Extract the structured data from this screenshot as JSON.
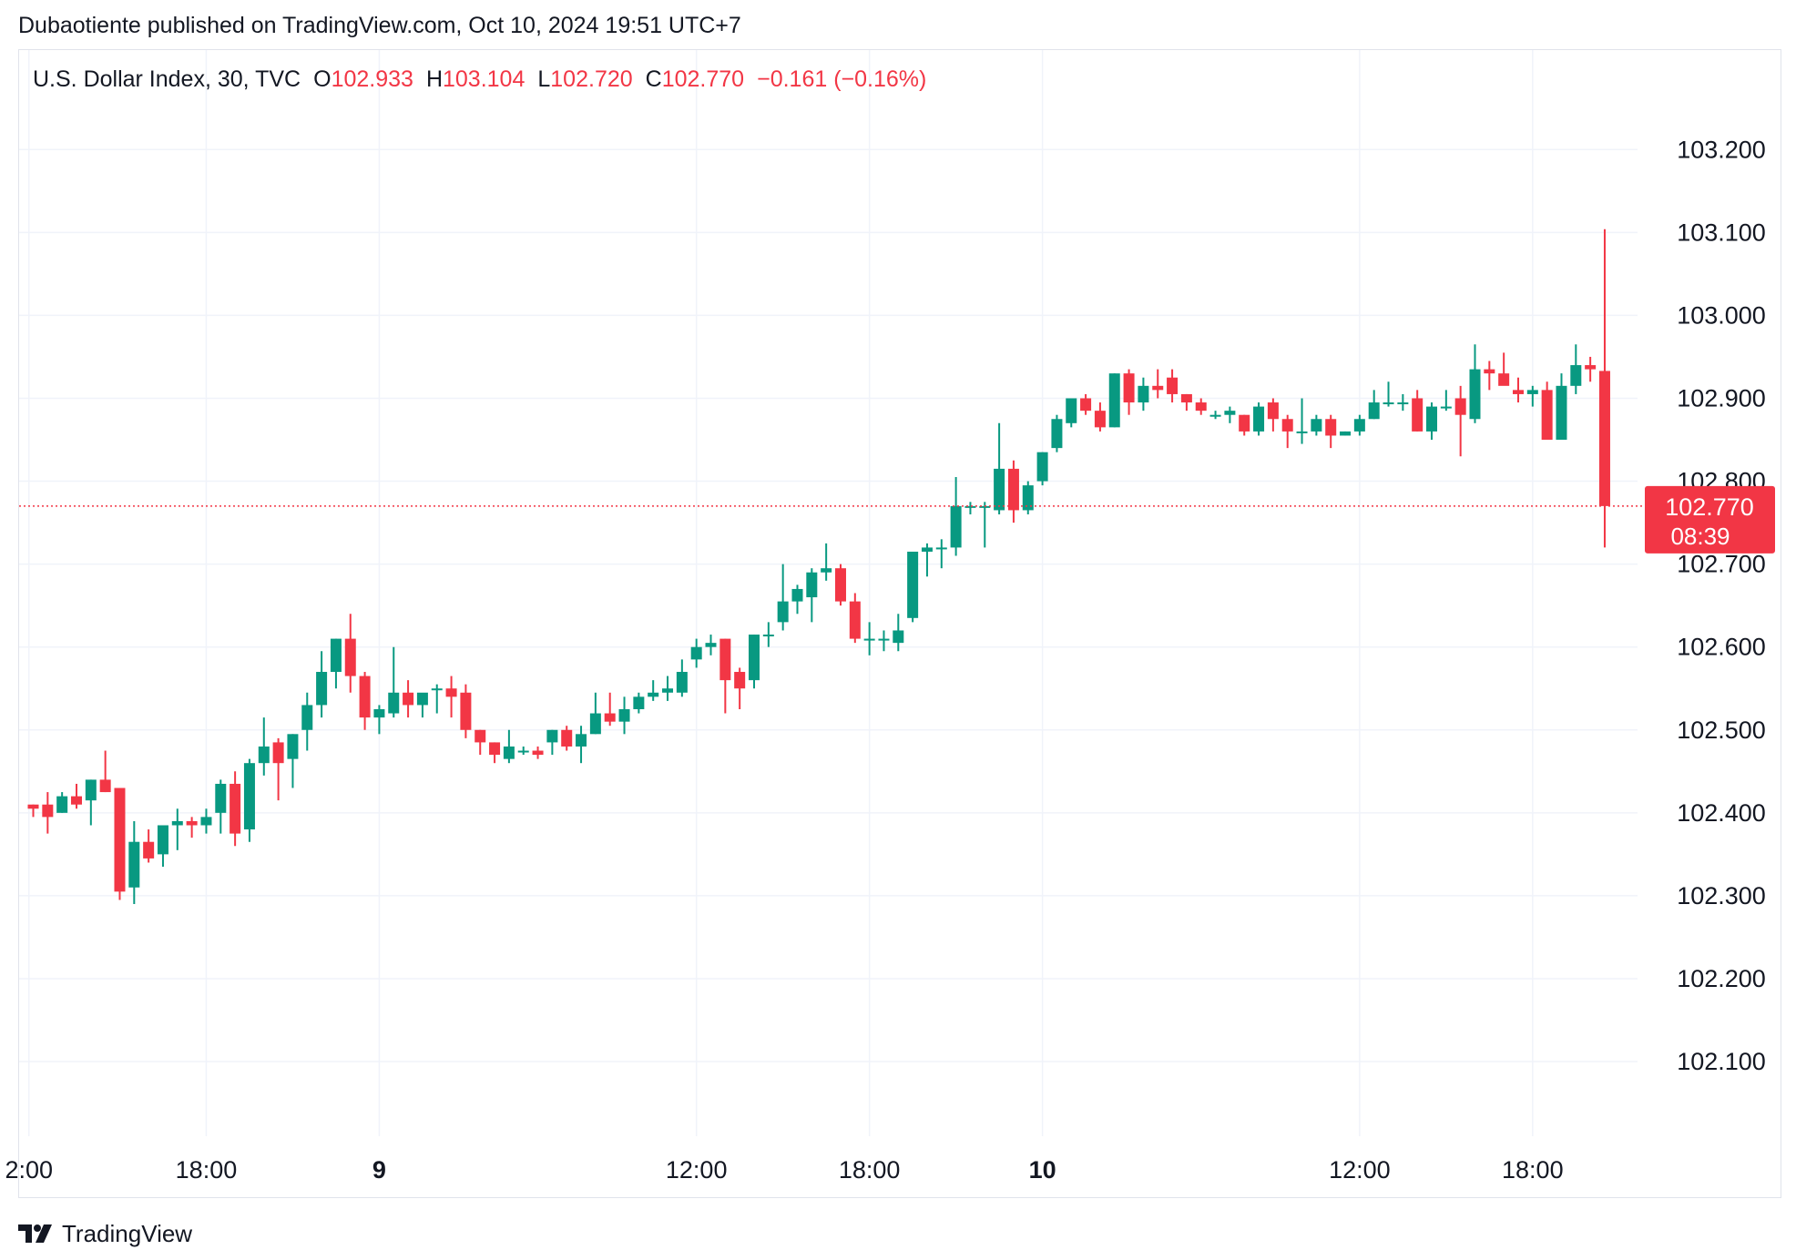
{
  "header": {
    "published": "Dubaotiente published on TradingView.com, Oct 10, 2024 19:51 UTC+7"
  },
  "legend": {
    "name": "U.S. Dollar Index, 30, TVC",
    "o_label": "O",
    "o_value": "102.933",
    "h_label": "H",
    "h_value": "103.104",
    "l_label": "L",
    "l_value": "102.720",
    "c_label": "C",
    "c_value": "102.770",
    "change": "−0.161 (−0.16%)"
  },
  "price_tag": {
    "price": "102.770",
    "countdown": "08:39"
  },
  "brand": {
    "name": "TradingView",
    "icon": "tradingview-logo-icon"
  },
  "colors": {
    "up": "#089981",
    "down": "#f23645",
    "grid": "#f0f3fa",
    "text": "#131722",
    "border": "#e0e3eb"
  },
  "chart_data": {
    "type": "candlestick",
    "interval": "30",
    "ylim": [
      102.01,
      103.32
    ],
    "ytick_labels": [
      "103.200",
      "103.100",
      "103.000",
      "102.900",
      "102.800",
      "102.700",
      "102.600",
      "102.500",
      "102.400",
      "102.300",
      "102.200",
      "102.100"
    ],
    "xtick_labels": [
      {
        "label": "2:00",
        "bar": -0.3,
        "bold": false
      },
      {
        "label": "18:00",
        "bar": 12,
        "bold": false
      },
      {
        "label": "9",
        "bar": 24,
        "bold": true
      },
      {
        "label": "12:00",
        "bar": 46,
        "bold": false
      },
      {
        "label": "18:00",
        "bar": 58,
        "bold": false
      },
      {
        "label": "10",
        "bar": 70,
        "bold": true
      },
      {
        "label": "12:00",
        "bar": 92,
        "bold": false
      },
      {
        "label": "18:00",
        "bar": 104,
        "bold": false
      }
    ],
    "grid": true,
    "last_price": 102.77,
    "ohlc": [
      [
        102.41,
        102.41,
        102.395,
        102.405
      ],
      [
        102.41,
        102.425,
        102.375,
        102.395
      ],
      [
        102.4,
        102.425,
        102.4,
        102.42
      ],
      [
        102.42,
        102.435,
        102.405,
        102.41
      ],
      [
        102.415,
        102.44,
        102.385,
        102.44
      ],
      [
        102.44,
        102.475,
        102.425,
        102.425
      ],
      [
        102.43,
        102.43,
        102.295,
        102.305
      ],
      [
        102.31,
        102.39,
        102.29,
        102.365
      ],
      [
        102.365,
        102.38,
        102.34,
        102.345
      ],
      [
        102.35,
        102.385,
        102.335,
        102.385
      ],
      [
        102.385,
        102.405,
        102.355,
        102.39
      ],
      [
        102.39,
        102.395,
        102.37,
        102.385
      ],
      [
        102.385,
        102.405,
        102.375,
        102.395
      ],
      [
        102.4,
        102.44,
        102.375,
        102.435
      ],
      [
        102.435,
        102.45,
        102.36,
        102.375
      ],
      [
        102.38,
        102.465,
        102.365,
        102.46
      ],
      [
        102.46,
        102.515,
        102.445,
        102.48
      ],
      [
        102.485,
        102.49,
        102.415,
        102.46
      ],
      [
        102.465,
        102.495,
        102.43,
        102.495
      ],
      [
        102.5,
        102.545,
        102.475,
        102.53
      ],
      [
        102.53,
        102.595,
        102.515,
        102.57
      ],
      [
        102.57,
        102.61,
        102.55,
        102.61
      ],
      [
        102.61,
        102.64,
        102.545,
        102.565
      ],
      [
        102.565,
        102.57,
        102.5,
        102.515
      ],
      [
        102.515,
        102.53,
        102.495,
        102.525
      ],
      [
        102.52,
        102.6,
        102.515,
        102.545
      ],
      [
        102.545,
        102.56,
        102.515,
        102.53
      ],
      [
        102.53,
        102.54,
        102.515,
        102.545
      ],
      [
        102.55,
        102.555,
        102.52,
        102.55
      ],
      [
        102.55,
        102.565,
        102.515,
        102.54
      ],
      [
        102.545,
        102.555,
        102.49,
        102.5
      ],
      [
        102.5,
        102.5,
        102.47,
        102.485
      ],
      [
        102.485,
        102.485,
        102.46,
        102.47
      ],
      [
        102.465,
        102.5,
        102.46,
        102.48
      ],
      [
        102.475,
        102.48,
        102.47,
        102.475
      ],
      [
        102.475,
        102.48,
        102.465,
        102.47
      ],
      [
        102.485,
        102.5,
        102.47,
        102.5
      ],
      [
        102.5,
        102.505,
        102.475,
        102.48
      ],
      [
        102.48,
        102.505,
        102.46,
        102.495
      ],
      [
        102.495,
        102.545,
        102.495,
        102.52
      ],
      [
        102.52,
        102.545,
        102.505,
        102.51
      ],
      [
        102.51,
        102.54,
        102.495,
        102.525
      ],
      [
        102.525,
        102.545,
        102.52,
        102.54
      ],
      [
        102.54,
        102.56,
        102.535,
        102.545
      ],
      [
        102.545,
        102.565,
        102.535,
        102.55
      ],
      [
        102.545,
        102.585,
        102.54,
        102.57
      ],
      [
        102.585,
        102.61,
        102.575,
        102.6
      ],
      [
        102.6,
        102.615,
        102.59,
        102.605
      ],
      [
        102.61,
        102.61,
        102.52,
        102.56
      ],
      [
        102.57,
        102.575,
        102.525,
        102.55
      ],
      [
        102.56,
        102.615,
        102.55,
        102.615
      ],
      [
        102.615,
        102.63,
        102.6,
        102.615
      ],
      [
        102.63,
        102.7,
        102.62,
        102.655
      ],
      [
        102.655,
        102.675,
        102.64,
        102.67
      ],
      [
        102.66,
        102.695,
        102.63,
        102.69
      ],
      [
        102.69,
        102.725,
        102.68,
        102.695
      ],
      [
        102.695,
        102.7,
        102.65,
        102.655
      ],
      [
        102.655,
        102.665,
        102.605,
        102.61
      ],
      [
        102.61,
        102.63,
        102.59,
        102.61
      ],
      [
        102.61,
        102.62,
        102.595,
        102.61
      ],
      [
        102.605,
        102.64,
        102.595,
        102.62
      ],
      [
        102.635,
        102.715,
        102.63,
        102.715
      ],
      [
        102.715,
        102.725,
        102.685,
        102.72
      ],
      [
        102.72,
        102.73,
        102.695,
        102.72
      ],
      [
        102.72,
        102.805,
        102.71,
        102.77
      ],
      [
        102.77,
        102.775,
        102.76,
        102.77
      ],
      [
        102.77,
        102.775,
        102.72,
        102.77
      ],
      [
        102.765,
        102.87,
        102.76,
        102.815
      ],
      [
        102.815,
        102.825,
        102.75,
        102.765
      ],
      [
        102.765,
        102.8,
        102.76,
        102.795
      ],
      [
        102.8,
        102.835,
        102.795,
        102.835
      ],
      [
        102.84,
        102.88,
        102.835,
        102.875
      ],
      [
        102.87,
        102.9,
        102.865,
        102.9
      ],
      [
        102.9,
        102.905,
        102.88,
        102.885
      ],
      [
        102.885,
        102.895,
        102.86,
        102.865
      ],
      [
        102.865,
        102.93,
        102.865,
        102.93
      ],
      [
        102.93,
        102.935,
        102.88,
        102.895
      ],
      [
        102.895,
        102.925,
        102.885,
        102.915
      ],
      [
        102.915,
        102.935,
        102.9,
        102.91
      ],
      [
        102.925,
        102.935,
        102.895,
        102.905
      ],
      [
        102.905,
        102.905,
        102.885,
        102.895
      ],
      [
        102.895,
        102.9,
        102.88,
        102.885
      ],
      [
        102.88,
        102.885,
        102.875,
        102.88
      ],
      [
        102.88,
        102.89,
        102.87,
        102.885
      ],
      [
        102.88,
        102.88,
        102.855,
        102.86
      ],
      [
        102.86,
        102.895,
        102.855,
        102.89
      ],
      [
        102.895,
        102.9,
        102.86,
        102.875
      ],
      [
        102.875,
        102.88,
        102.84,
        102.86
      ],
      [
        102.86,
        102.9,
        102.845,
        102.86
      ],
      [
        102.86,
        102.88,
        102.855,
        102.875
      ],
      [
        102.875,
        102.88,
        102.84,
        102.855
      ],
      [
        102.855,
        102.86,
        102.855,
        102.86
      ],
      [
        102.86,
        102.88,
        102.855,
        102.875
      ],
      [
        102.875,
        102.91,
        102.875,
        102.895
      ],
      [
        102.895,
        102.92,
        102.89,
        102.895
      ],
      [
        102.895,
        102.905,
        102.885,
        102.895
      ],
      [
        102.9,
        102.91,
        102.86,
        102.86
      ],
      [
        102.86,
        102.895,
        102.85,
        102.89
      ],
      [
        102.89,
        102.91,
        102.885,
        102.89
      ],
      [
        102.9,
        102.915,
        102.83,
        102.88
      ],
      [
        102.875,
        102.965,
        102.87,
        102.935
      ],
      [
        102.935,
        102.945,
        102.91,
        102.93
      ],
      [
        102.93,
        102.955,
        102.92,
        102.915
      ],
      [
        102.91,
        102.925,
        102.895,
        102.905
      ],
      [
        102.905,
        102.915,
        102.89,
        102.91
      ],
      [
        102.91,
        102.92,
        102.85,
        102.85
      ],
      [
        102.85,
        102.93,
        102.85,
        102.915
      ],
      [
        102.915,
        102.965,
        102.905,
        102.94
      ],
      [
        102.94,
        102.95,
        102.92,
        102.935
      ],
      [
        102.933,
        103.104,
        102.72,
        102.77
      ]
    ]
  }
}
